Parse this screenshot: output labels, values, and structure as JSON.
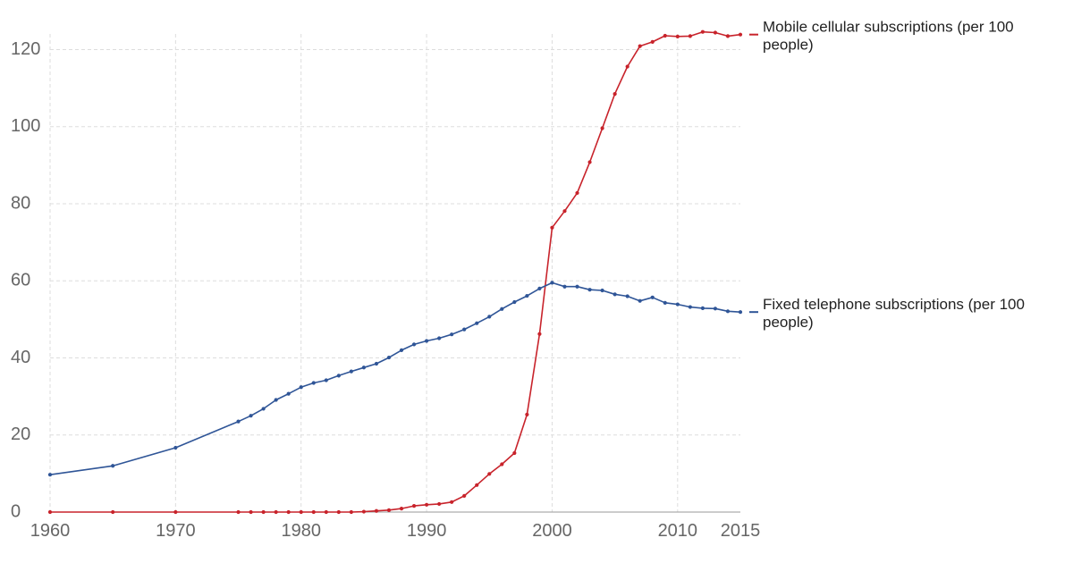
{
  "chart_data": {
    "type": "line",
    "title": "",
    "xlabel": "",
    "ylabel": "",
    "xlim": [
      1960,
      2015
    ],
    "ylim": [
      0,
      125
    ],
    "x_ticks": [
      1960,
      1970,
      1980,
      1990,
      2000,
      2010,
      2015
    ],
    "y_ticks": [
      0,
      20,
      40,
      60,
      80,
      100,
      120
    ],
    "grid": true,
    "legend": "inline-right",
    "series": [
      {
        "name": "Mobile cellular subscriptions (per 100 people)",
        "label_lines": [
          "Mobile cellular subscriptions (per 100",
          "people)"
        ],
        "color": "#c8232b",
        "x": [
          1960,
          1965,
          1970,
          1975,
          1976,
          1977,
          1978,
          1979,
          1980,
          1981,
          1982,
          1983,
          1984,
          1985,
          1986,
          1987,
          1988,
          1989,
          1990,
          1991,
          1992,
          1993,
          1994,
          1995,
          1996,
          1997,
          1998,
          1999,
          2000,
          2001,
          2002,
          2003,
          2004,
          2005,
          2006,
          2007,
          2008,
          2009,
          2010,
          2011,
          2012,
          2013,
          2014,
          2015
        ],
        "y": [
          0,
          0,
          0,
          0,
          0,
          0,
          0,
          0,
          0,
          0,
          0,
          0,
          0,
          0.1,
          0.3,
          0.5,
          0.9,
          1.6,
          1.9,
          2.1,
          2.6,
          4.2,
          7.0,
          9.9,
          12.4,
          15.3,
          25.3,
          46.2,
          73.8,
          78.1,
          82.8,
          90.8,
          99.6,
          108.5,
          115.6,
          120.9,
          122.0,
          123.6,
          123.4,
          123.5,
          124.6,
          124.4,
          123.5,
          123.9
        ]
      },
      {
        "name": "Fixed telephone subscriptions (per 100 people)",
        "label_lines": [
          "Fixed telephone subscriptions (per 100",
          "people)"
        ],
        "color": "#2f5597",
        "x": [
          1960,
          1965,
          1970,
          1975,
          1976,
          1977,
          1978,
          1979,
          1980,
          1981,
          1982,
          1983,
          1984,
          1985,
          1986,
          1987,
          1988,
          1989,
          1990,
          1991,
          1992,
          1993,
          1994,
          1995,
          1996,
          1997,
          1998,
          1999,
          2000,
          2001,
          2002,
          2003,
          2004,
          2005,
          2006,
          2007,
          2008,
          2009,
          2010,
          2011,
          2012,
          2013,
          2014,
          2015
        ],
        "y": [
          9.7,
          12.0,
          16.7,
          23.5,
          25.0,
          26.8,
          29.1,
          30.7,
          32.4,
          33.5,
          34.2,
          35.4,
          36.5,
          37.5,
          38.5,
          40.1,
          42.0,
          43.5,
          44.4,
          45.1,
          46.1,
          47.4,
          49.0,
          50.7,
          52.7,
          54.5,
          56.1,
          58.0,
          59.5,
          58.5,
          58.5,
          57.7,
          57.5,
          56.5,
          56.0,
          54.8,
          55.7,
          54.3,
          53.9,
          53.2,
          52.9,
          52.8,
          52.1,
          51.9
        ]
      }
    ]
  }
}
